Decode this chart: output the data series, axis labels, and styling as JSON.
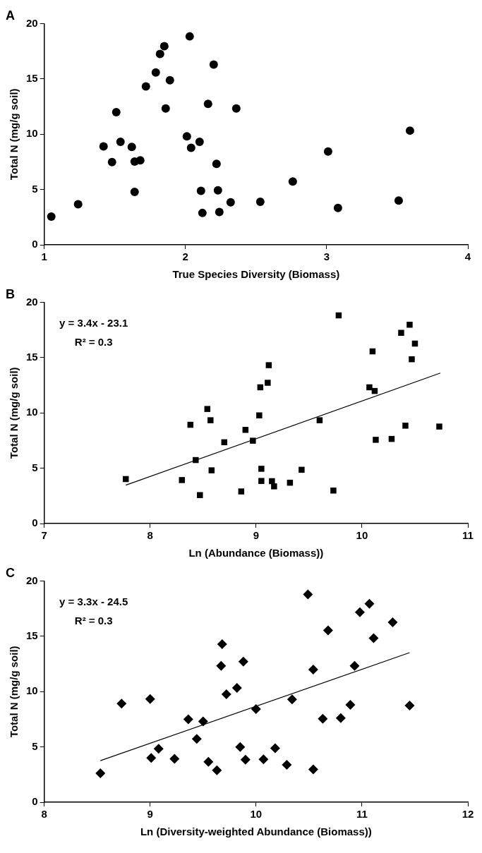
{
  "chart_data": [
    {
      "type": "scatter",
      "title": "A",
      "xlabel": "True Species Diversity (Biomass)",
      "ylabel": "Total N (mg/g soil)",
      "xlim": [
        1,
        4
      ],
      "xticks": [
        1,
        2,
        3,
        4
      ],
      "ylim": [
        0,
        20
      ],
      "yticks": [
        0,
        5,
        10,
        15,
        20
      ],
      "grid": false,
      "legend": false,
      "marker": "circle",
      "series": [
        {
          "color": "#000000",
          "x": [
            1.05,
            1.24,
            1.42,
            1.48,
            1.51,
            1.54,
            1.62,
            1.64,
            1.68,
            1.64,
            1.72,
            1.79,
            1.82,
            1.85,
            1.86,
            1.89,
            2.01,
            2.03,
            2.04,
            2.1,
            2.16,
            2.2,
            2.22,
            2.11,
            2.12,
            2.23,
            2.24,
            2.32,
            2.36,
            2.53,
            2.76,
            3.01,
            3.08,
            3.51,
            3.59
          ],
          "values": [
            2.55,
            3.67,
            8.9,
            7.48,
            12.0,
            9.32,
            8.85,
            7.53,
            7.64,
            4.79,
            14.33,
            15.59,
            17.26,
            17.97,
            12.33,
            14.88,
            9.81,
            18.85,
            8.77,
            9.32,
            12.74,
            16.3,
            7.32,
            4.88,
            2.88,
            4.93,
            2.96,
            3.84,
            12.33,
            3.89,
            5.73,
            8.44,
            3.34,
            4.0,
            10.33
          ]
        }
      ]
    },
    {
      "type": "scatter",
      "title": "B",
      "xlabel": "Ln (Abundance (Biomass))",
      "ylabel": "Total N (mg/g soil)",
      "xlim": [
        7,
        11
      ],
      "xticks": [
        7,
        8,
        9,
        10,
        11
      ],
      "ylim": [
        0,
        20
      ],
      "yticks": [
        0,
        5,
        10,
        15,
        20
      ],
      "grid": false,
      "legend": false,
      "marker": "square",
      "annotations": [
        "y = 3.4x - 23.1",
        "R² = 0.3"
      ],
      "series": [
        {
          "color": "#000000",
          "x": [
            7.77,
            8.3,
            8.38,
            8.43,
            8.47,
            8.54,
            8.57,
            8.58,
            8.7,
            8.86,
            8.9,
            8.97,
            9.03,
            9.04,
            9.05,
            9.05,
            9.11,
            9.12,
            9.15,
            9.17,
            9.32,
            9.43,
            9.6,
            9.73,
            9.78,
            10.07,
            10.1,
            10.12,
            10.13,
            10.28,
            10.37,
            10.41,
            10.45,
            10.47,
            10.5,
            10.73
          ],
          "values": [
            4.02,
            3.93,
            8.93,
            5.74,
            2.57,
            10.36,
            9.34,
            4.81,
            7.35,
            2.9,
            8.47,
            7.49,
            9.78,
            12.32,
            4.95,
            3.85,
            12.73,
            14.32,
            3.83,
            3.36,
            3.69,
            4.86,
            9.34,
            2.98,
            18.83,
            12.32,
            15.57,
            11.99,
            7.57,
            7.65,
            17.24,
            8.85,
            17.98,
            14.86,
            16.28,
            8.77
          ]
        },
        {
          "type": "line",
          "color": "#000000",
          "marker": "none",
          "x": [
            7.77,
            10.74
          ],
          "values": [
            3.47,
            13.61
          ]
        }
      ]
    },
    {
      "type": "scatter",
      "title": "C",
      "xlabel": "Ln (Diversity-weighted Abundance (Biomass))",
      "ylabel": "Total N (mg/g soil)",
      "xlim": [
        8,
        12
      ],
      "xticks": [
        8,
        9,
        10,
        11,
        12
      ],
      "ylim": [
        0,
        20
      ],
      "yticks": [
        0,
        5,
        10,
        15,
        20
      ],
      "grid": false,
      "legend": false,
      "marker": "diamond",
      "annotations": [
        "y = 3.3x - 24.5",
        "R² = 0.3"
      ],
      "series": [
        {
          "color": "#000000",
          "x": [
            8.53,
            8.73,
            9.0,
            9.01,
            9.08,
            9.23,
            9.36,
            9.44,
            9.5,
            9.55,
            9.63,
            9.67,
            9.68,
            9.72,
            9.82,
            9.85,
            9.88,
            9.9,
            10.0,
            10.07,
            10.18,
            10.29,
            10.34,
            10.49,
            10.54,
            10.54,
            10.63,
            10.68,
            10.8,
            10.89,
            10.93,
            10.98,
            11.07,
            11.11,
            11.29,
            11.45
          ],
          "values": [
            2.62,
            8.92,
            9.33,
            4.01,
            4.83,
            3.93,
            7.5,
            5.73,
            7.31,
            3.65,
            2.89,
            12.33,
            14.29,
            9.76,
            10.34,
            4.99,
            12.71,
            3.85,
            8.43,
            3.87,
            4.88,
            3.38,
            9.3,
            18.79,
            2.97,
            12.0,
            7.55,
            15.54,
            7.61,
            8.81,
            12.33,
            17.18,
            17.95,
            14.84,
            16.28,
            8.75
          ]
        },
        {
          "type": "line",
          "color": "#000000",
          "marker": "none",
          "x": [
            8.53,
            11.45
          ],
          "values": [
            3.76,
            13.53
          ]
        }
      ]
    }
  ]
}
